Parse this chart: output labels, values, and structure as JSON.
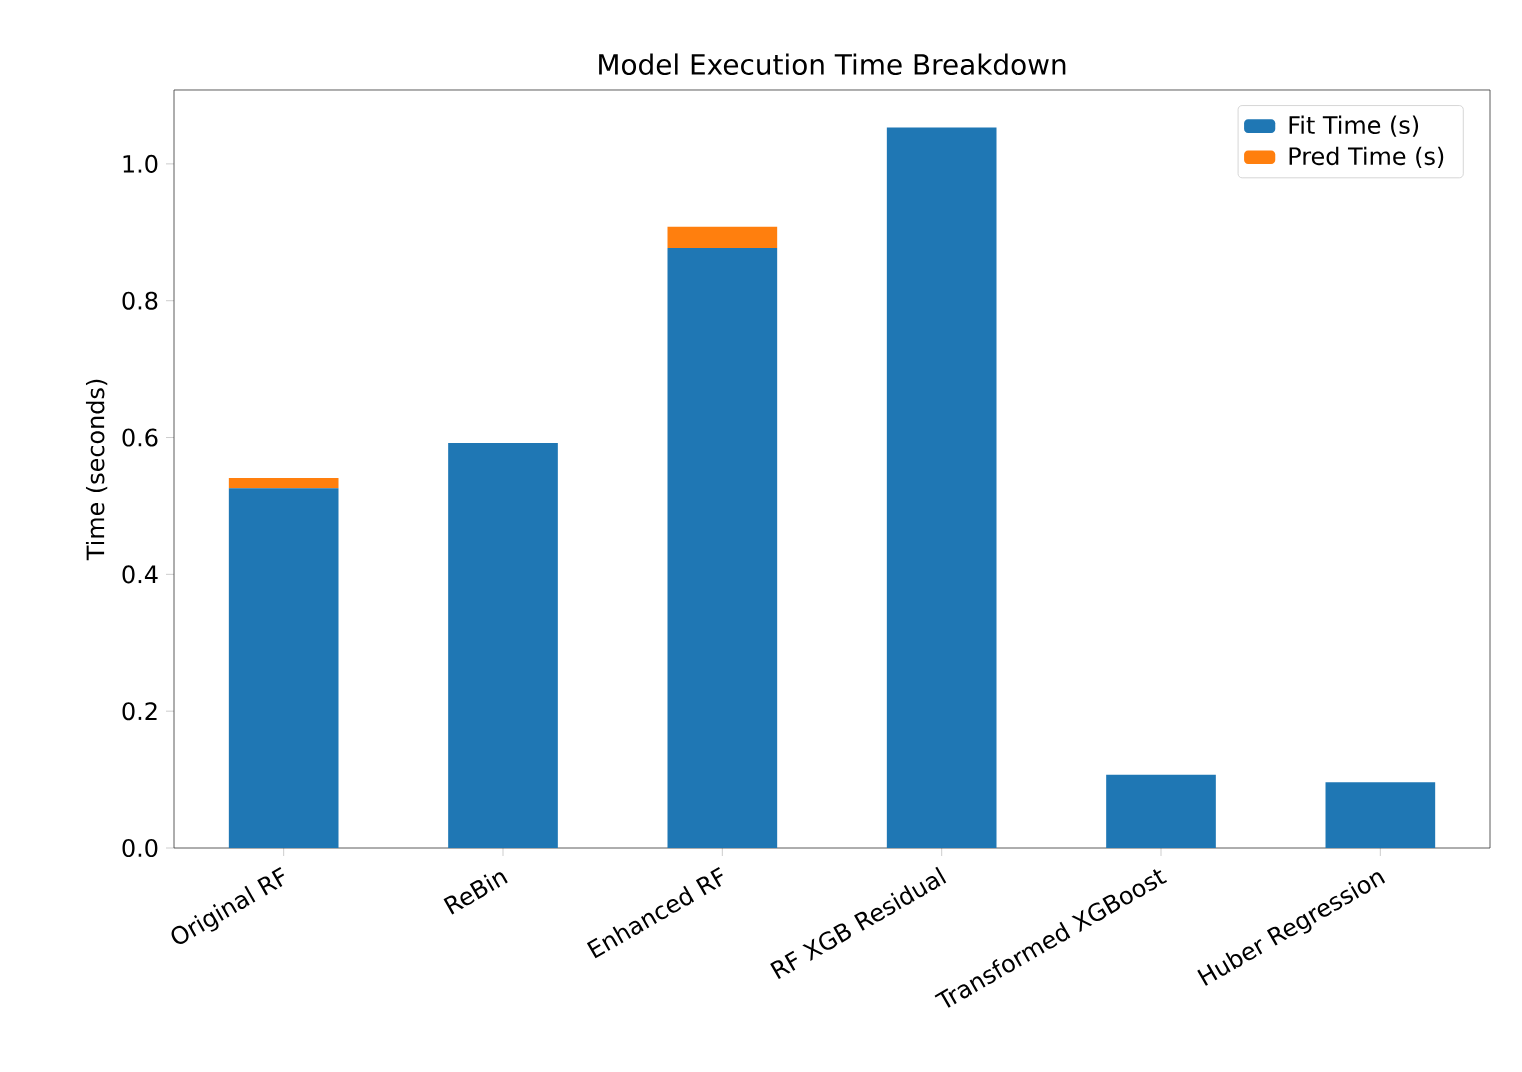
{
  "chart_data": {
    "type": "bar",
    "stacked": true,
    "title": "Model Execution Time Breakdown",
    "ylabel": "Time (seconds)",
    "categories": [
      "Original RF",
      "ReBin",
      "Enhanced RF",
      "RF XGB Residual",
      "Transformed XGBoost",
      "Huber Regression"
    ],
    "series": [
      {
        "name": "Fit Time (s)",
        "color": "#1f77b4",
        "values": [
          0.526,
          0.592,
          0.877,
          1.053,
          0.107,
          0.096
        ]
      },
      {
        "name": "Pred Time (s)",
        "color": "#ff7f0e",
        "values": [
          0.015,
          0,
          0.031,
          0,
          0,
          0
        ]
      }
    ],
    "ylim": [
      0,
      1.108
    ],
    "yticks": [
      {
        "value": 0,
        "label": "0.0"
      },
      0.2,
      0.4,
      0.6,
      0.8,
      {
        "value": 1.0,
        "label": "1.0"
      }
    ],
    "legend": "top right",
    "grid": false
  }
}
